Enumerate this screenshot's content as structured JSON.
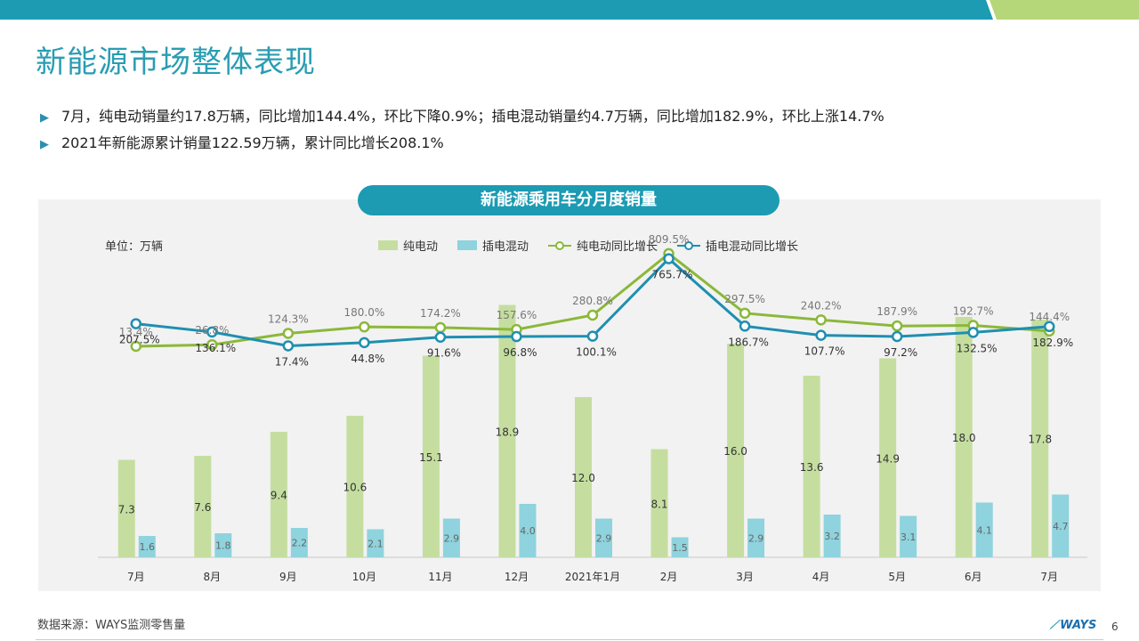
{
  "page": {
    "title": "新能源市场整体表现",
    "bullets": [
      "7月，纯电动销量约17.8万辆，同比增加144.4%，环比下降0.9%；插电混动销量约4.7万辆，同比增加182.9%，环比上涨14.7%",
      "2021年新能源累计销量122.59万辆，累计同比增长208.1%"
    ],
    "footer": "数据来源：WAYS监测零售量",
    "logo": "WAYS",
    "page_number": "6",
    "colors": {
      "accent": "#2a9db2",
      "bev_bar": "#c5dea0",
      "phev_bar": "#8ed3dd",
      "bev_line": "#8bb83a",
      "phev_line": "#1f8fb0"
    }
  },
  "chart_data": {
    "type": "bar",
    "title": "新能源乘用车分月度销量",
    "unit_label": "单位：万辆",
    "categories": [
      "7月",
      "8月",
      "9月",
      "10月",
      "11月",
      "12月",
      "2021年1月",
      "2月",
      "3月",
      "4月",
      "5月",
      "6月",
      "7月"
    ],
    "series": [
      {
        "name": "纯电动",
        "kind": "bar",
        "values": [
          7.3,
          7.6,
          9.4,
          10.6,
          15.1,
          18.9,
          12.0,
          8.1,
          16.0,
          13.6,
          14.9,
          18.0,
          17.8
        ],
        "labels": [
          "7.3",
          "7.6",
          "9.4",
          "10.6",
          "15.1",
          "18.9",
          "12.0",
          "8.1",
          "16.0",
          "13.6",
          "14.9",
          "18.0",
          "17.8"
        ]
      },
      {
        "name": "插电混动",
        "kind": "bar",
        "values": [
          1.6,
          1.8,
          2.2,
          2.1,
          2.9,
          4.0,
          2.9,
          1.5,
          2.9,
          3.2,
          3.1,
          4.1,
          4.7
        ],
        "labels": [
          "1.6",
          "1.8",
          "2.2",
          "2.1",
          "2.9",
          "4.0",
          "2.9",
          "1.5",
          "2.9",
          "3.2",
          "3.1",
          "4.1",
          "4.7"
        ]
      },
      {
        "name": "纯电动同比增长",
        "kind": "line",
        "values": [
          13.4,
          26.8,
          124.3,
          180.0,
          174.2,
          157.6,
          280.8,
          809.5,
          297.5,
          240.2,
          187.9,
          192.7,
          144.4
        ],
        "labels": [
          "13.4%",
          "26.8%",
          "124.3%",
          "180.0%",
          "174.2%",
          "157.6%",
          "280.8%",
          "809.5%",
          "297.5%",
          "240.2%",
          "187.9%",
          "192.7%",
          "144.4%"
        ]
      },
      {
        "name": "插电混动同比增长",
        "kind": "line",
        "values": [
          207.5,
          136.1,
          17.4,
          44.8,
          91.6,
          96.8,
          100.1,
          765.7,
          186.7,
          107.7,
          97.2,
          132.5,
          182.9
        ],
        "labels": [
          "207.5%",
          "136.1%",
          "17.4%",
          "44.8%",
          "91.6%",
          "96.8%",
          "100.1%",
          "765.7%",
          "186.7%",
          "107.7%",
          "97.2%",
          "132.5%",
          "182.9%"
        ]
      }
    ],
    "bar_ylim": [
      0,
      20
    ],
    "line_ylim": [
      -1800,
      1000
    ],
    "legend_position": "top-center",
    "grid": false
  }
}
